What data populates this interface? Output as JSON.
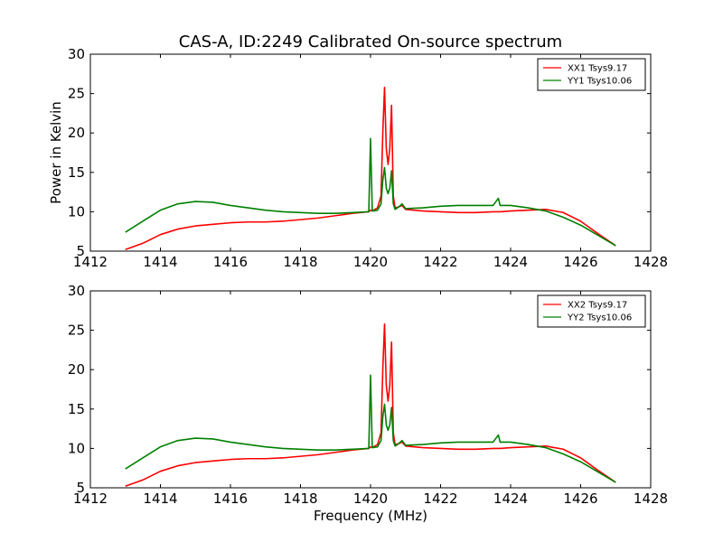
{
  "chart_data": [
    {
      "type": "line",
      "title": "CAS-A, ID:2249 Calibrated On-source spectrum",
      "xlabel": "",
      "ylabel": "Power in Kelvin",
      "xlim": [
        1412,
        1428
      ],
      "ylim": [
        5,
        30
      ],
      "xticks": [
        1412,
        1414,
        1416,
        1418,
        1420,
        1422,
        1424,
        1426,
        1428
      ],
      "yticks": [
        5,
        10,
        15,
        20,
        25,
        30
      ],
      "grid": false,
      "legend_position": "top-right",
      "series": [
        {
          "name": "XX1 Tsys9.17",
          "color": "#ff0000",
          "x": [
            1413.0,
            1413.5,
            1414.0,
            1414.5,
            1415.0,
            1415.5,
            1416.0,
            1416.5,
            1417.0,
            1417.5,
            1418.0,
            1418.5,
            1419.0,
            1419.5,
            1419.95,
            1420.0,
            1420.05,
            1420.2,
            1420.3,
            1420.35,
            1420.4,
            1420.45,
            1420.5,
            1420.55,
            1420.6,
            1420.65,
            1420.7,
            1420.8,
            1420.9,
            1421.0,
            1421.5,
            1422.0,
            1422.5,
            1423.0,
            1423.5,
            1423.65,
            1423.7,
            1424.0,
            1424.5,
            1425.0,
            1425.5,
            1426.0,
            1426.5,
            1427.0
          ],
          "values": [
            5.2,
            6.0,
            7.1,
            7.8,
            8.2,
            8.4,
            8.6,
            8.7,
            8.7,
            8.8,
            9.0,
            9.2,
            9.5,
            9.8,
            10.0,
            10.2,
            10.1,
            10.5,
            12.0,
            20.0,
            25.8,
            18.0,
            16.0,
            18.0,
            23.5,
            12.0,
            10.5,
            10.6,
            10.8,
            10.3,
            10.1,
            10.0,
            9.9,
            9.9,
            10.0,
            10.0,
            10.0,
            10.1,
            10.2,
            10.3,
            9.9,
            8.8,
            7.2,
            5.7
          ]
        },
        {
          "name": "YY1 Tsys10.06",
          "color": "#008000",
          "x": [
            1413.0,
            1413.5,
            1414.0,
            1414.5,
            1415.0,
            1415.5,
            1416.0,
            1416.5,
            1417.0,
            1417.5,
            1418.0,
            1418.5,
            1419.0,
            1419.5,
            1419.95,
            1420.0,
            1420.05,
            1420.2,
            1420.3,
            1420.35,
            1420.4,
            1420.45,
            1420.5,
            1420.55,
            1420.6,
            1420.65,
            1420.7,
            1420.8,
            1420.9,
            1421.0,
            1421.5,
            1422.0,
            1422.5,
            1423.0,
            1423.5,
            1423.65,
            1423.7,
            1424.0,
            1424.5,
            1425.0,
            1425.5,
            1426.0,
            1426.5,
            1427.0
          ],
          "values": [
            7.4,
            8.8,
            10.2,
            11.0,
            11.3,
            11.2,
            10.8,
            10.5,
            10.2,
            10.0,
            9.9,
            9.8,
            9.8,
            9.9,
            10.0,
            19.3,
            10.1,
            10.2,
            11.0,
            14.0,
            15.6,
            13.0,
            12.3,
            13.0,
            15.2,
            11.0,
            10.3,
            10.6,
            11.0,
            10.4,
            10.5,
            10.7,
            10.8,
            10.8,
            10.8,
            11.7,
            10.8,
            10.8,
            10.5,
            10.1,
            9.3,
            8.3,
            7.0,
            5.7
          ]
        }
      ]
    },
    {
      "type": "line",
      "title": "",
      "xlabel": "Frequency (MHz)",
      "ylabel": "",
      "xlim": [
        1412,
        1428
      ],
      "ylim": [
        5,
        30
      ],
      "xticks": [
        1412,
        1414,
        1416,
        1418,
        1420,
        1422,
        1424,
        1426,
        1428
      ],
      "yticks": [
        5,
        10,
        15,
        20,
        25,
        30
      ],
      "grid": false,
      "legend_position": "top-right",
      "series": [
        {
          "name": "XX2 Tsys9.17",
          "color": "#ff0000",
          "x": [
            1413.0,
            1413.5,
            1414.0,
            1414.5,
            1415.0,
            1415.5,
            1416.0,
            1416.5,
            1417.0,
            1417.5,
            1418.0,
            1418.5,
            1419.0,
            1419.5,
            1419.95,
            1420.0,
            1420.05,
            1420.2,
            1420.3,
            1420.35,
            1420.4,
            1420.45,
            1420.5,
            1420.55,
            1420.6,
            1420.65,
            1420.7,
            1420.8,
            1420.9,
            1421.0,
            1421.5,
            1422.0,
            1422.5,
            1423.0,
            1423.5,
            1423.65,
            1423.7,
            1424.0,
            1424.5,
            1425.0,
            1425.5,
            1426.0,
            1426.5,
            1427.0
          ],
          "values": [
            5.2,
            6.0,
            7.1,
            7.8,
            8.2,
            8.4,
            8.6,
            8.7,
            8.7,
            8.8,
            9.0,
            9.2,
            9.5,
            9.8,
            10.0,
            10.2,
            10.1,
            10.5,
            12.0,
            20.0,
            25.8,
            18.0,
            16.0,
            18.0,
            23.5,
            12.0,
            10.5,
            10.6,
            10.8,
            10.3,
            10.1,
            10.0,
            9.9,
            9.9,
            10.0,
            10.0,
            10.0,
            10.1,
            10.2,
            10.3,
            9.9,
            8.8,
            7.2,
            5.7
          ]
        },
        {
          "name": "YY2 Tsys10.06",
          "color": "#008000",
          "x": [
            1413.0,
            1413.5,
            1414.0,
            1414.5,
            1415.0,
            1415.5,
            1416.0,
            1416.5,
            1417.0,
            1417.5,
            1418.0,
            1418.5,
            1419.0,
            1419.5,
            1419.95,
            1420.0,
            1420.05,
            1420.2,
            1420.3,
            1420.35,
            1420.4,
            1420.45,
            1420.5,
            1420.55,
            1420.6,
            1420.65,
            1420.7,
            1420.8,
            1420.9,
            1421.0,
            1421.5,
            1422.0,
            1422.5,
            1423.0,
            1423.5,
            1423.65,
            1423.7,
            1424.0,
            1424.5,
            1425.0,
            1425.5,
            1426.0,
            1426.5,
            1427.0
          ],
          "values": [
            7.4,
            8.8,
            10.2,
            11.0,
            11.3,
            11.2,
            10.8,
            10.5,
            10.2,
            10.0,
            9.9,
            9.8,
            9.8,
            9.9,
            10.0,
            19.3,
            10.1,
            10.2,
            11.0,
            14.0,
            15.6,
            13.0,
            12.3,
            13.0,
            15.2,
            11.0,
            10.3,
            10.6,
            11.0,
            10.4,
            10.5,
            10.7,
            10.8,
            10.8,
            10.8,
            11.7,
            10.8,
            10.8,
            10.5,
            10.1,
            9.3,
            8.3,
            7.0,
            5.7
          ]
        }
      ]
    }
  ]
}
